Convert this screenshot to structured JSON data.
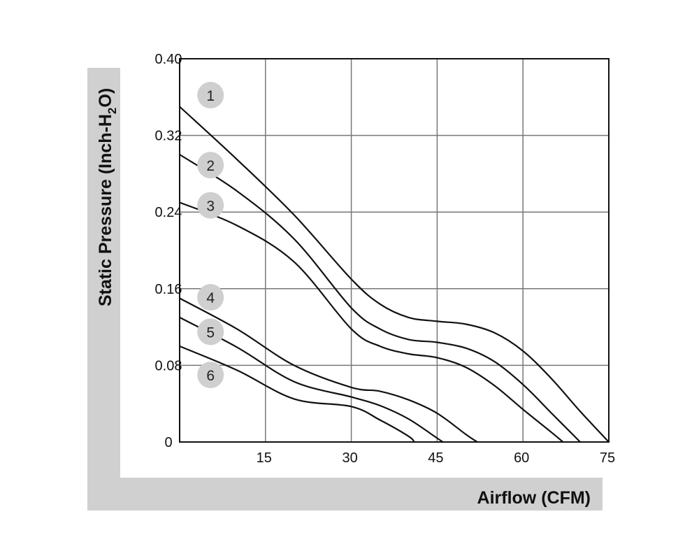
{
  "chart_data": {
    "type": "line",
    "title": "",
    "xlabel": "Airflow (CFM)",
    "ylabel_parts": [
      "Static Pressure (Inch-H",
      "2",
      "O)"
    ],
    "xlim": [
      0,
      75
    ],
    "ylim": [
      0,
      0.4
    ],
    "x_ticks": [
      0,
      15,
      30,
      45,
      60,
      75
    ],
    "x_tick_labels": [
      "15",
      "30",
      "45",
      "60",
      "75"
    ],
    "y_ticks": [
      0,
      0.08,
      0.16,
      0.24,
      0.32,
      0.4
    ],
    "y_tick_labels": [
      "0",
      "0.08",
      "0.16",
      "0.24",
      "0.32",
      "0.40"
    ],
    "grid": true,
    "series": [
      {
        "label": "1",
        "label_at": [
          5.4,
          0.362
        ],
        "x": [
          0,
          10,
          20,
          30,
          35,
          40,
          45,
          50,
          55,
          60,
          65,
          70,
          75
        ],
        "y": [
          0.35,
          0.295,
          0.237,
          0.17,
          0.144,
          0.13,
          0.126,
          0.123,
          0.114,
          0.095,
          0.066,
          0.032,
          0.0
        ]
      },
      {
        "label": "2",
        "label_at": [
          5.4,
          0.289
        ],
        "x": [
          0,
          10,
          20,
          30,
          35,
          40,
          45,
          50,
          55,
          60,
          65,
          70
        ],
        "y": [
          0.3,
          0.262,
          0.212,
          0.14,
          0.118,
          0.107,
          0.104,
          0.098,
          0.084,
          0.06,
          0.03,
          0.0
        ]
      },
      {
        "label": "3",
        "label_at": [
          5.4,
          0.247
        ],
        "x": [
          0,
          10,
          20,
          30,
          35,
          40,
          45,
          50,
          55,
          60,
          65,
          67
        ],
        "y": [
          0.25,
          0.226,
          0.188,
          0.118,
          0.1,
          0.092,
          0.088,
          0.078,
          0.059,
          0.034,
          0.01,
          0.0
        ]
      },
      {
        "label": "4",
        "label_at": [
          5.4,
          0.151
        ],
        "x": [
          0,
          10,
          20,
          30,
          35,
          40,
          45,
          50,
          52
        ],
        "y": [
          0.15,
          0.118,
          0.08,
          0.057,
          0.053,
          0.044,
          0.03,
          0.008,
          0.0
        ]
      },
      {
        "label": "5",
        "label_at": [
          5.4,
          0.115
        ],
        "x": [
          0,
          10,
          20,
          30,
          35,
          40,
          45,
          46
        ],
        "y": [
          0.13,
          0.099,
          0.063,
          0.047,
          0.038,
          0.024,
          0.004,
          0.0
        ]
      },
      {
        "label": "6",
        "label_at": [
          5.4,
          0.07
        ],
        "x": [
          0,
          10,
          20,
          30,
          35,
          40,
          41
        ],
        "y": [
          0.1,
          0.075,
          0.045,
          0.037,
          0.023,
          0.006,
          0.0
        ]
      }
    ],
    "colors": {
      "line": "#111111",
      "grid": "#777777",
      "band": "#d0d0d0",
      "badge": "#cfcfcf"
    }
  }
}
